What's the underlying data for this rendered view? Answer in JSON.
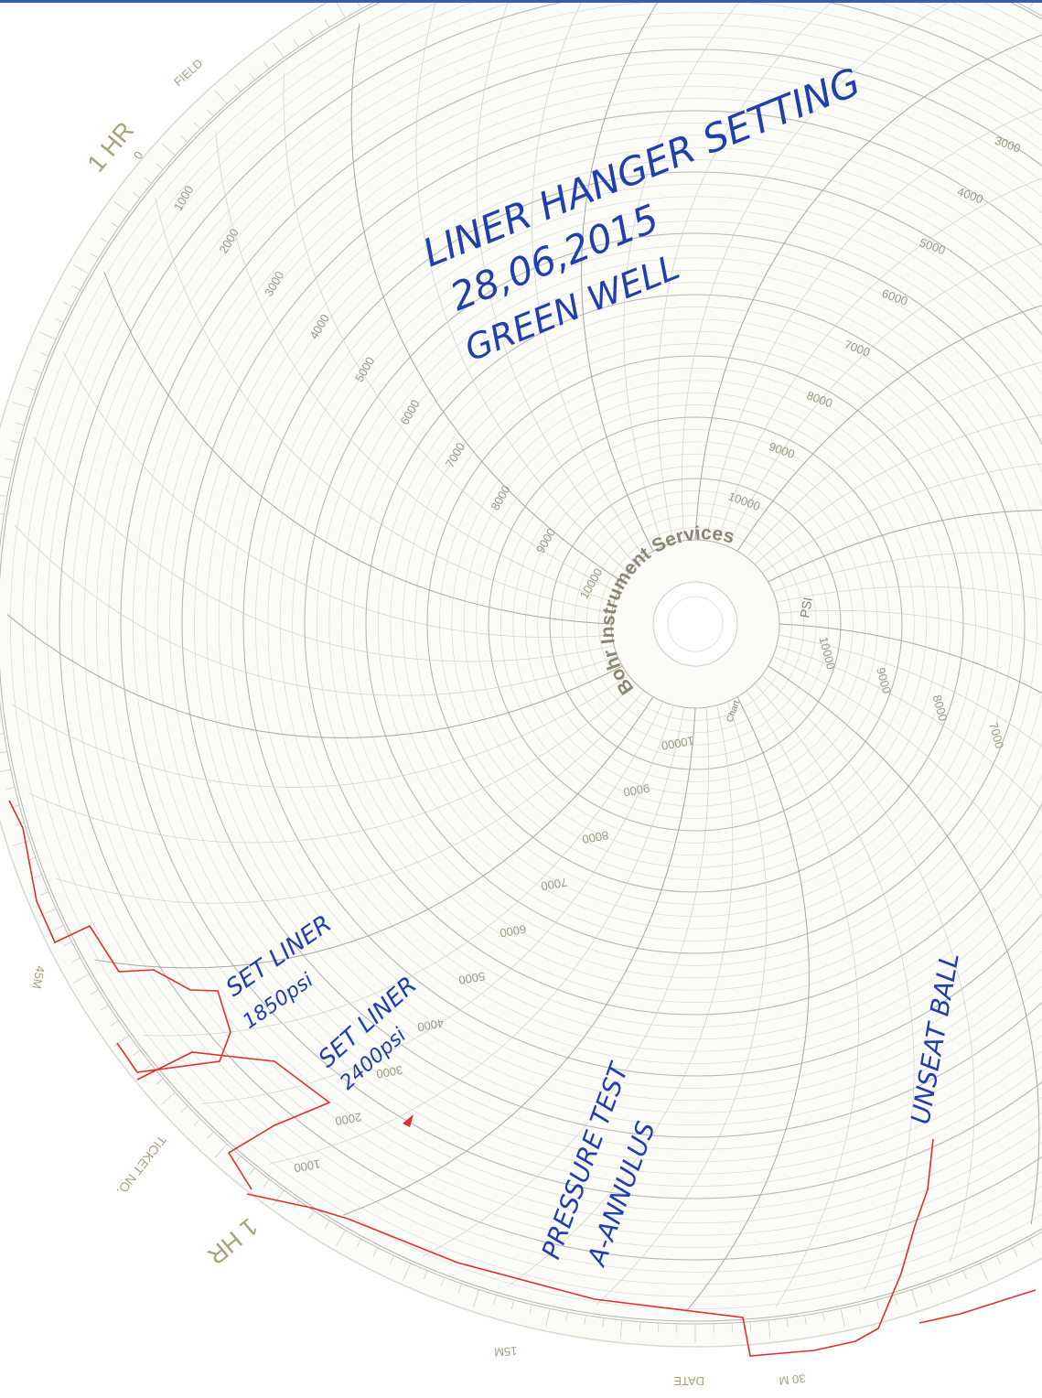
{
  "notes": {
    "title": "LINER HANGER SETTING",
    "date": "28,06,2015",
    "well": "GREEN WELL",
    "set_liner_1": [
      "SET LINER",
      "1850psi"
    ],
    "set_liner_2": [
      "SET LINER",
      "2400psi"
    ],
    "pressure_test": [
      "PRESSURE TEST",
      "A-ANNULUS"
    ],
    "unseat_ball": "UNSEAT BALL"
  },
  "chart_print": {
    "brand": "Bohr Instrument Services",
    "unit": "PSI",
    "chart": "Chart",
    "hour_marks": [
      "1 HR",
      "1 HR"
    ],
    "field": "FIELD",
    "ticket": "TICKET NO.",
    "date": "DATE",
    "minutes": [
      "15M",
      "30 M",
      "45M"
    ]
  },
  "scales": [
    [
      "0",
      "1000",
      "2000",
      "3000",
      "4000",
      "5000",
      "6000",
      "7000",
      "8000",
      "9000",
      "10000"
    ],
    [
      "3000",
      "4000",
      "5000",
      "6000",
      "7000",
      "8000",
      "9000",
      "10000"
    ],
    [
      "10000",
      "9000",
      "8000",
      "7000"
    ],
    [
      "10000",
      "9000",
      "8000",
      "7000",
      "6000",
      "5000",
      "4000",
      "3000",
      "2000",
      "1000"
    ]
  ]
}
